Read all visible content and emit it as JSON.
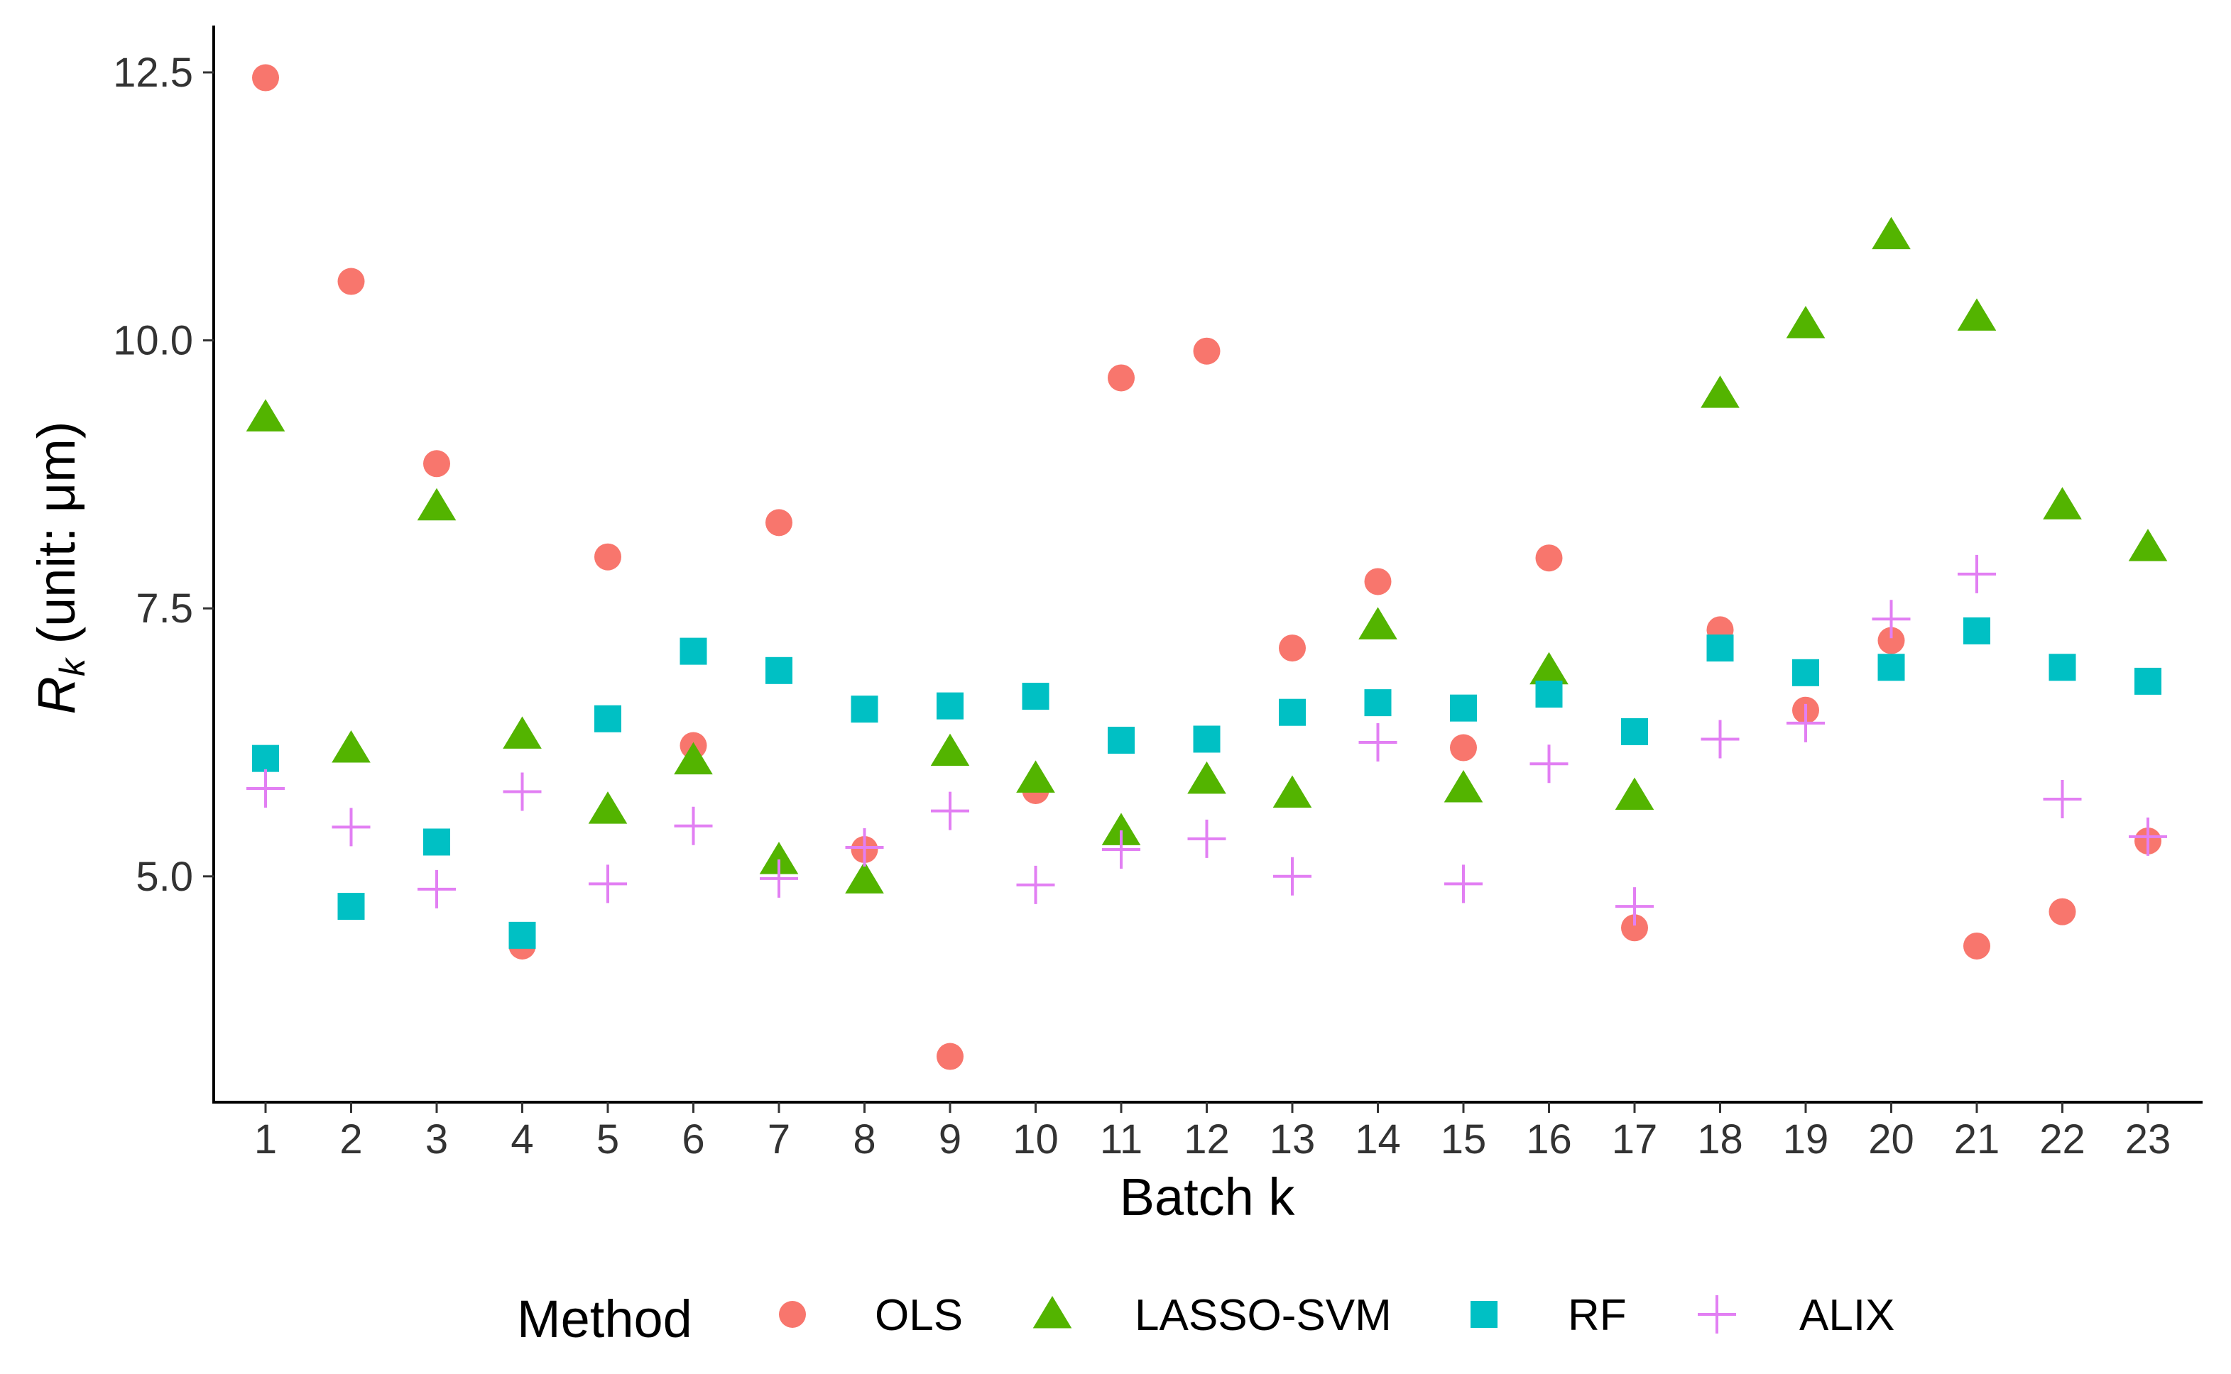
{
  "chart_data": {
    "type": "scatter",
    "title": "",
    "xlabel": "Batch k",
    "ylabel_main": "R",
    "ylabel_sub": "k",
    "ylabel_rest": " (unit: μm)",
    "x": [
      1,
      2,
      3,
      4,
      5,
      6,
      7,
      8,
      9,
      10,
      11,
      12,
      13,
      14,
      15,
      16,
      17,
      18,
      19,
      20,
      21,
      22,
      23
    ],
    "xticks": [
      "1",
      "2",
      "3",
      "4",
      "5",
      "6",
      "7",
      "8",
      "9",
      "10",
      "11",
      "12",
      "13",
      "14",
      "15",
      "16",
      "17",
      "18",
      "19",
      "20",
      "21",
      "22",
      "23"
    ],
    "ylim": [
      2.8,
      12.9
    ],
    "yticks": [
      5.0,
      7.5,
      10.0,
      12.5
    ],
    "ytick_labels": [
      "5.0",
      "7.5",
      "10.0",
      "12.5"
    ],
    "grid": false,
    "legend_position": "bottom",
    "legend_title": "Method",
    "series": [
      {
        "name": "OLS",
        "marker": "circle",
        "color": "#F8766D",
        "values": [
          12.45,
          10.55,
          8.85,
          4.35,
          7.98,
          6.22,
          8.3,
          5.25,
          3.32,
          5.8,
          9.65,
          9.9,
          7.13,
          7.75,
          6.2,
          7.97,
          4.52,
          7.3,
          6.55,
          7.2,
          4.35,
          4.67,
          5.33
        ]
      },
      {
        "name": "LASSO-SVM",
        "marker": "triangle",
        "color": "#53B400",
        "values": [
          9.28,
          6.19,
          8.45,
          6.32,
          5.62,
          6.08,
          5.15,
          4.97,
          6.16,
          5.91,
          5.42,
          5.9,
          5.77,
          7.34,
          5.82,
          6.92,
          5.75,
          9.5,
          10.15,
          10.98,
          10.22,
          8.46,
          8.07
        ]
      },
      {
        "name": "RF",
        "marker": "square",
        "color": "#00C0C4",
        "values": [
          6.1,
          4.72,
          5.32,
          4.45,
          6.47,
          7.1,
          6.92,
          6.56,
          6.59,
          6.68,
          6.27,
          6.28,
          6.53,
          6.62,
          6.57,
          6.7,
          6.35,
          7.13,
          6.9,
          6.95,
          7.29,
          6.95,
          6.82
        ]
      },
      {
        "name": "ALIX",
        "marker": "cross",
        "color": "#E27FF3",
        "values": [
          5.82,
          5.46,
          4.88,
          5.79,
          4.93,
          5.47,
          4.98,
          5.27,
          5.61,
          4.92,
          5.25,
          5.35,
          5.0,
          6.25,
          4.93,
          6.05,
          4.72,
          6.28,
          6.43,
          7.4,
          7.82,
          5.72,
          5.37
        ]
      }
    ]
  }
}
